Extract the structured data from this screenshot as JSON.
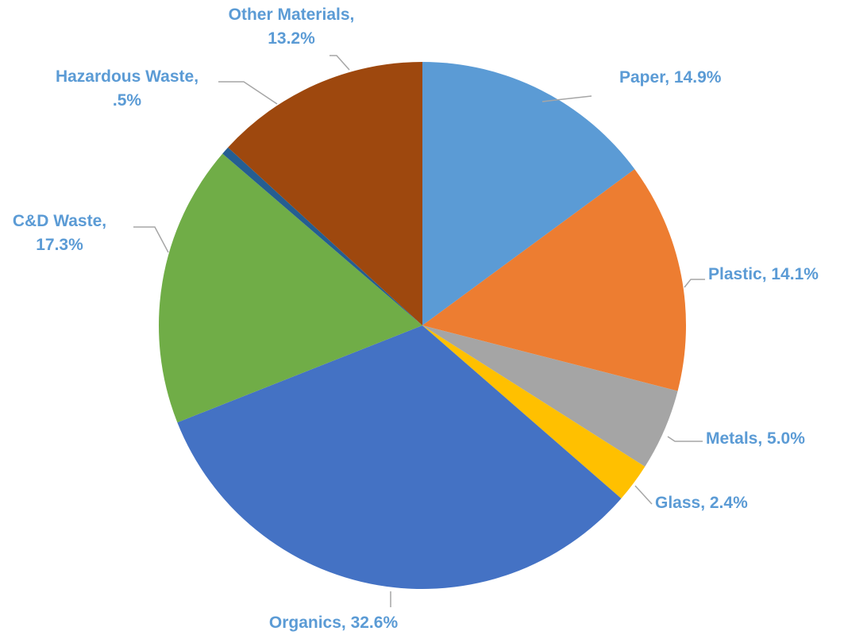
{
  "chart_data": {
    "type": "pie",
    "title": "",
    "start_angle_deg": 0,
    "direction": "clockwise",
    "slices": [
      {
        "name": "Paper",
        "value": 14.9,
        "color": "#5b9bd5",
        "label_lines": [
          "Paper, 14.9%"
        ]
      },
      {
        "name": "Plastic",
        "value": 14.1,
        "color": "#ed7d31",
        "label_lines": [
          "Plastic, 14.1%"
        ]
      },
      {
        "name": "Metals",
        "value": 5.0,
        "color": "#a5a5a5",
        "label_lines": [
          "Metals, 5.0%"
        ]
      },
      {
        "name": "Glass",
        "value": 2.4,
        "color": "#ffc000",
        "label_lines": [
          "Glass, 2.4%"
        ]
      },
      {
        "name": "Organics",
        "value": 32.6,
        "color": "#4472c4",
        "label_lines": [
          "Organics, 32.6%"
        ]
      },
      {
        "name": "C&D Waste",
        "value": 17.3,
        "color": "#70ad47",
        "label_lines": [
          "C&D Waste,",
          "17.3%"
        ]
      },
      {
        "name": "Hazardous Waste",
        "value": 0.5,
        "color": "#255e91",
        "label_lines": [
          "Hazardous Waste,",
          ".5%"
        ]
      },
      {
        "name": "Other Materials",
        "value": 13.2,
        "color": "#9e480e",
        "label_lines": [
          "Other Materials,",
          "13.2%"
        ]
      }
    ],
    "label_color": "#5b9bd5",
    "leader_color": "#a6a6a6"
  }
}
